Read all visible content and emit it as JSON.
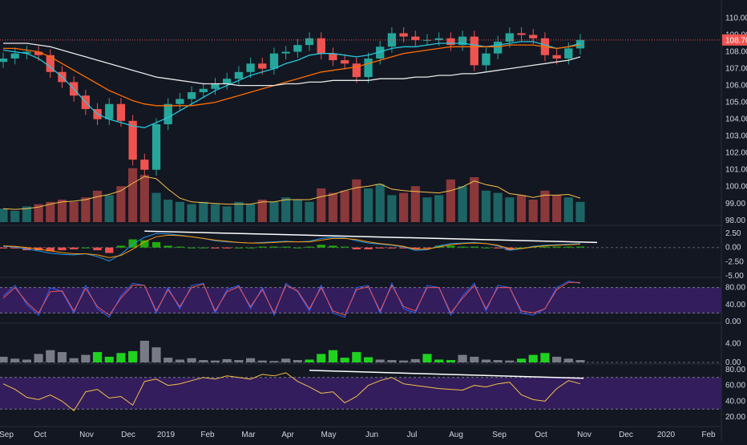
{
  "colors": {
    "background": "#131722",
    "grid": "#2a2e39",
    "up": "#26a69a",
    "down": "#ef5350",
    "vol_up": "#26a69a",
    "vol_down": "#ef5350",
    "ma_fast": "#26c6da",
    "ma_mid": "#ff6d00",
    "ma_slow": "#e8e8e8",
    "vol_ma": "#f5c04a",
    "macd": "#2196f3",
    "signal": "#ff9800",
    "hist_up": "#22ab0b",
    "hist_down": "#ef5350",
    "stoch_k": "#2962ff",
    "stoch_d": "#ef5350",
    "band": "#3a1f66",
    "histo_green": "#1fd21f",
    "histo_grey": "#787b86",
    "rsi": "#f5c04a",
    "trendline": "#ffffff",
    "price_line": "#ef5350",
    "price_tag_bg": "#ef5350"
  },
  "price_axis_labels": [
    "110.00",
    "109.00",
    "108.00",
    "107.00",
    "106.00",
    "105.00",
    "104.00",
    "103.00",
    "102.00",
    "101.00",
    "100.00",
    "99.00",
    "98.00"
  ],
  "current_price_label": "108.70",
  "macd_axis_labels": [
    "2.50",
    "0.00",
    "-2.50",
    "-5.00"
  ],
  "stoch_axis_labels": [
    "80.00",
    "40.00",
    "0.00"
  ],
  "histo_axis_labels": [
    "4.00",
    "0.00"
  ],
  "rsi_axis_labels": [
    "80.00",
    "60.00",
    "40.00",
    "20.00"
  ],
  "time_labels": [
    "Sep",
    "Oct",
    "Nov",
    "Dec",
    "2019",
    "Feb",
    "Mar",
    "Apr",
    "May",
    "Jun",
    "Jul",
    "Aug",
    "Sep",
    "Oct",
    "Nov",
    "Dec",
    "2020",
    "Feb"
  ],
  "chart_data": [
    {
      "type": "candlestick",
      "ylim": [
        97.8,
        110.5
      ],
      "series": [
        {
          "name": "price",
          "values": [
            107.6,
            107.9,
            108.0,
            107.8,
            106.8,
            106.2,
            105.4,
            104.6,
            104.0,
            104.9,
            103.9,
            101.6,
            101.0,
            103.7,
            104.9,
            105.2,
            105.6,
            105.8,
            106.1,
            106.4,
            106.8,
            107.3,
            107.0,
            107.9,
            108.0,
            108.4,
            108.8,
            107.9,
            107.5,
            107.3,
            106.5,
            107.6,
            108.3,
            109.1,
            108.9,
            108.7,
            108.7,
            108.8,
            108.4,
            108.9,
            107.2,
            107.9,
            108.6,
            109.1,
            109.0,
            108.8,
            107.8,
            107.6,
            108.2,
            108.7
          ]
        },
        {
          "name": "ma_fast",
          "values": [
            108.1,
            108.0,
            107.9,
            107.6,
            107.1,
            106.5,
            105.8,
            105.0,
            104.3,
            104.0,
            103.8,
            103.6,
            103.5,
            103.8,
            104.1,
            104.5,
            104.9,
            105.3,
            105.7,
            106.0,
            106.3,
            106.6,
            106.8,
            107.0,
            107.3,
            107.5,
            107.8,
            107.9,
            107.9,
            107.8,
            107.7,
            107.8,
            108.0,
            108.2,
            108.3,
            108.3,
            108.4,
            108.5,
            108.5,
            108.5,
            108.4,
            108.3,
            108.4,
            108.5,
            108.6,
            108.6,
            108.4,
            108.2,
            108.3,
            108.5
          ]
        },
        {
          "name": "ma_mid",
          "values": [
            108.2,
            108.2,
            108.1,
            108.0,
            107.7,
            107.3,
            106.9,
            106.5,
            106.1,
            105.7,
            105.4,
            105.1,
            104.9,
            104.8,
            104.8,
            104.8,
            104.8,
            104.9,
            105.0,
            105.2,
            105.4,
            105.6,
            105.8,
            106.0,
            106.2,
            106.4,
            106.6,
            106.8,
            106.9,
            107.0,
            107.1,
            107.3,
            107.5,
            107.7,
            107.9,
            108.0,
            108.1,
            108.2,
            108.3,
            108.3,
            108.3,
            108.3,
            108.3,
            108.4,
            108.4,
            108.4,
            108.3,
            108.2,
            108.3,
            108.4
          ]
        },
        {
          "name": "ma_slow",
          "values": [
            108.5,
            108.5,
            108.5,
            108.4,
            108.3,
            108.1,
            107.9,
            107.7,
            107.5,
            107.3,
            107.1,
            106.9,
            106.7,
            106.5,
            106.4,
            106.3,
            106.2,
            106.1,
            106.1,
            106.1,
            106.0,
            106.0,
            106.0,
            106.0,
            106.1,
            106.1,
            106.2,
            106.2,
            106.3,
            106.3,
            106.3,
            106.3,
            106.4,
            106.4,
            106.4,
            106.5,
            106.5,
            106.6,
            106.6,
            106.7,
            106.7,
            106.8,
            106.9,
            107.0,
            107.1,
            107.2,
            107.3,
            107.4,
            107.5,
            107.7
          ]
        },
        {
          "name": "volume",
          "values": [
            0.6,
            0.5,
            0.7,
            0.8,
            0.9,
            1.0,
            0.9,
            1.1,
            1.4,
            1.2,
            1.6,
            2.4,
            2.1,
            1.3,
            1.0,
            0.9,
            0.8,
            0.9,
            0.8,
            0.7,
            0.9,
            0.8,
            1.0,
            0.9,
            1.1,
            1.0,
            0.9,
            1.5,
            1.3,
            1.4,
            1.9,
            1.5,
            1.7,
            1.2,
            1.3,
            1.6,
            1.1,
            1.2,
            1.9,
            1.6,
            2.0,
            1.4,
            1.3,
            1.1,
            1.2,
            1.0,
            1.4,
            1.2,
            1.1,
            0.9
          ]
        }
      ]
    },
    {
      "type": "line",
      "title": "",
      "ylim": [
        -5.0,
        3.5
      ],
      "series": [
        {
          "name": "macd",
          "values": [
            0.2,
            0.1,
            -0.3,
            -0.6,
            -1.0,
            -1.2,
            -1.3,
            -1.1,
            -1.6,
            -2.4,
            -1.2,
            0.6,
            1.8,
            2.5,
            2.4,
            2.2,
            1.9,
            1.6,
            1.2,
            1.0,
            0.9,
            0.8,
            0.9,
            1.0,
            1.1,
            1.0,
            1.1,
            1.6,
            1.8,
            1.7,
            1.2,
            0.8,
            0.6,
            0.4,
            0.1,
            -0.5,
            -0.4,
            0.3,
            0.7,
            0.8,
            0.9,
            0.7,
            0.3,
            -0.5,
            -0.2,
            0.2,
            0.4,
            0.5,
            0.6,
            0.7
          ]
        },
        {
          "name": "signal",
          "values": [
            0.3,
            0.2,
            0.0,
            -0.3,
            -0.6,
            -0.9,
            -1.1,
            -1.1,
            -1.3,
            -1.8,
            -1.4,
            -0.3,
            1.0,
            1.9,
            2.2,
            2.1,
            1.9,
            1.6,
            1.3,
            1.1,
            0.9,
            0.8,
            0.8,
            0.9,
            1.0,
            1.0,
            1.0,
            1.3,
            1.6,
            1.6,
            1.4,
            1.0,
            0.7,
            0.5,
            0.2,
            -0.3,
            -0.3,
            0.1,
            0.5,
            0.7,
            0.8,
            0.7,
            0.4,
            -0.2,
            -0.2,
            0.1,
            0.3,
            0.4,
            0.5,
            0.6
          ]
        }
      ]
    },
    {
      "type": "line",
      "title": "",
      "ylim": [
        0,
        100
      ],
      "series": [
        {
          "name": "k",
          "values": [
            60,
            85,
            40,
            15,
            80,
            70,
            20,
            85,
            30,
            10,
            60,
            90,
            85,
            20,
            80,
            30,
            85,
            90,
            20,
            75,
            85,
            30,
            80,
            15,
            90,
            70,
            25,
            85,
            20,
            10,
            80,
            85,
            20,
            90,
            30,
            20,
            85,
            80,
            15,
            60,
            90,
            25,
            85,
            80,
            20,
            15,
            30,
            80,
            95,
            90
          ]
        },
        {
          "name": "d",
          "values": [
            55,
            80,
            45,
            20,
            70,
            72,
            25,
            78,
            35,
            15,
            55,
            85,
            85,
            25,
            75,
            35,
            80,
            88,
            25,
            70,
            82,
            35,
            75,
            20,
            85,
            72,
            30,
            80,
            25,
            15,
            75,
            82,
            25,
            85,
            35,
            25,
            80,
            80,
            20,
            55,
            85,
            30,
            80,
            80,
            25,
            20,
            30,
            75,
            92,
            92
          ]
        }
      ]
    },
    {
      "type": "bar",
      "title": "",
      "ylim": [
        0,
        8
      ],
      "series": [
        {
          "name": "histogram",
          "values": [
            1.2,
            0.8,
            0.6,
            1.8,
            2.6,
            2.2,
            0.9,
            1.6,
            2.2,
            1.2,
            2.0,
            2.4,
            4.6,
            3.2,
            1.0,
            0.6,
            0.9,
            0.5,
            0.4,
            0.7,
            0.5,
            0.9,
            0.4,
            0.3,
            0.8,
            0.5,
            0.6,
            1.8,
            2.6,
            1.0,
            2.2,
            1.1,
            0.6,
            0.5,
            0.4,
            0.7,
            1.8,
            0.6,
            0.5,
            1.6,
            1.2,
            0.6,
            0.5,
            0.4,
            0.8,
            1.6,
            2.0,
            1.2,
            0.8,
            0.5
          ]
        }
      ]
    },
    {
      "type": "line",
      "title": "",
      "ylim": [
        10,
        85
      ],
      "series": [
        {
          "name": "rsi",
          "values": [
            62,
            55,
            45,
            42,
            48,
            40,
            28,
            52,
            55,
            44,
            46,
            35,
            65,
            68,
            60,
            62,
            66,
            70,
            68,
            72,
            70,
            68,
            74,
            72,
            76,
            65,
            58,
            50,
            52,
            38,
            46,
            60,
            66,
            70,
            62,
            60,
            58,
            56,
            55,
            54,
            60,
            58,
            62,
            64,
            48,
            42,
            40,
            56,
            66,
            62
          ]
        }
      ]
    }
  ]
}
